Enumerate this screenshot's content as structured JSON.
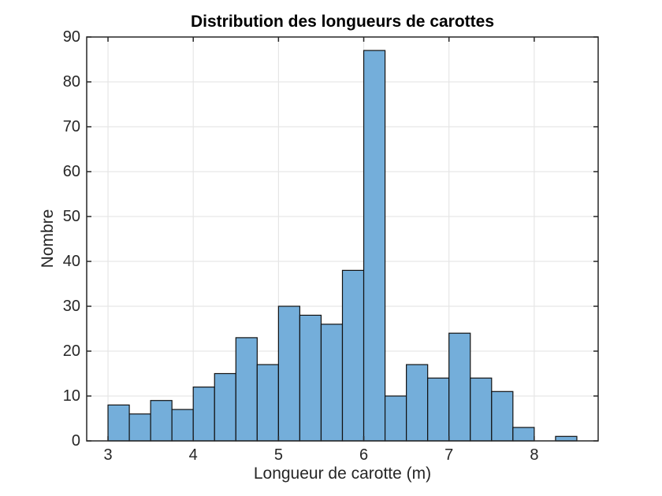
{
  "chart_data": {
    "type": "bar",
    "subtype": "histogram",
    "title": "Distribution des longueurs de carottes",
    "xlabel": "Longueur de carotte (m)",
    "ylabel": "Nombre",
    "bin_width": 0.25,
    "bin_start": 3.0,
    "bin_edges": [
      3.0,
      3.25,
      3.5,
      3.75,
      4.0,
      4.25,
      4.5,
      4.75,
      5.0,
      5.25,
      5.5,
      5.75,
      6.0,
      6.25,
      6.5,
      6.75,
      7.0,
      7.25,
      7.5,
      7.75,
      8.0,
      8.25,
      8.5
    ],
    "counts": [
      8,
      6,
      9,
      7,
      12,
      15,
      23,
      17,
      30,
      28,
      26,
      38,
      87,
      10,
      17,
      14,
      24,
      14,
      11,
      3,
      0,
      1
    ],
    "total_count": 400,
    "xlim": [
      2.75,
      8.75
    ],
    "ylim": [
      0,
      90
    ],
    "xticks": [
      3,
      4,
      5,
      6,
      7,
      8
    ],
    "yticks": [
      0,
      10,
      20,
      30,
      40,
      50,
      60,
      70,
      80,
      90
    ],
    "grid": "on",
    "legend": "none",
    "colors": {
      "bar_fill": "#74aeda",
      "bar_edge": "#111111",
      "grid_line": "#e6e6e6",
      "axis_line": "#262626",
      "tick_label": "#262626",
      "title_text": "#000000",
      "background": "#ffffff"
    }
  }
}
